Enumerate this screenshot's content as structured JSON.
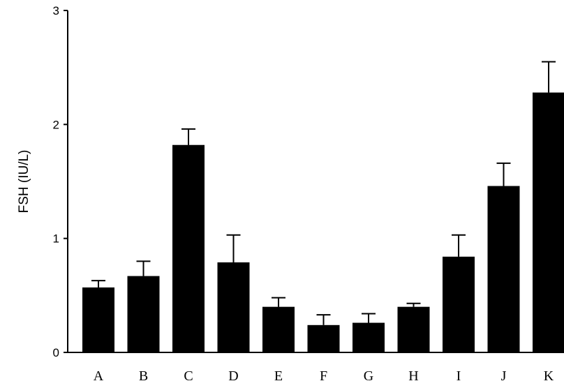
{
  "chart_data": {
    "type": "bar",
    "title": "",
    "xlabel": "",
    "ylabel": "FSH (IU/L)",
    "ylim": [
      0,
      3
    ],
    "yticks": [
      "0",
      "1",
      "2",
      "3"
    ],
    "categories": [
      "A",
      "B",
      "C",
      "D",
      "E",
      "F",
      "G",
      "H",
      "I",
      "J",
      "K"
    ],
    "values": [
      0.57,
      0.67,
      1.82,
      0.79,
      0.4,
      0.24,
      0.26,
      0.4,
      0.84,
      1.46,
      2.28
    ],
    "errors": [
      0.06,
      0.13,
      0.14,
      0.24,
      0.08,
      0.09,
      0.08,
      0.03,
      0.19,
      0.2,
      0.27
    ],
    "grid": false,
    "bar_color": "#000000"
  }
}
